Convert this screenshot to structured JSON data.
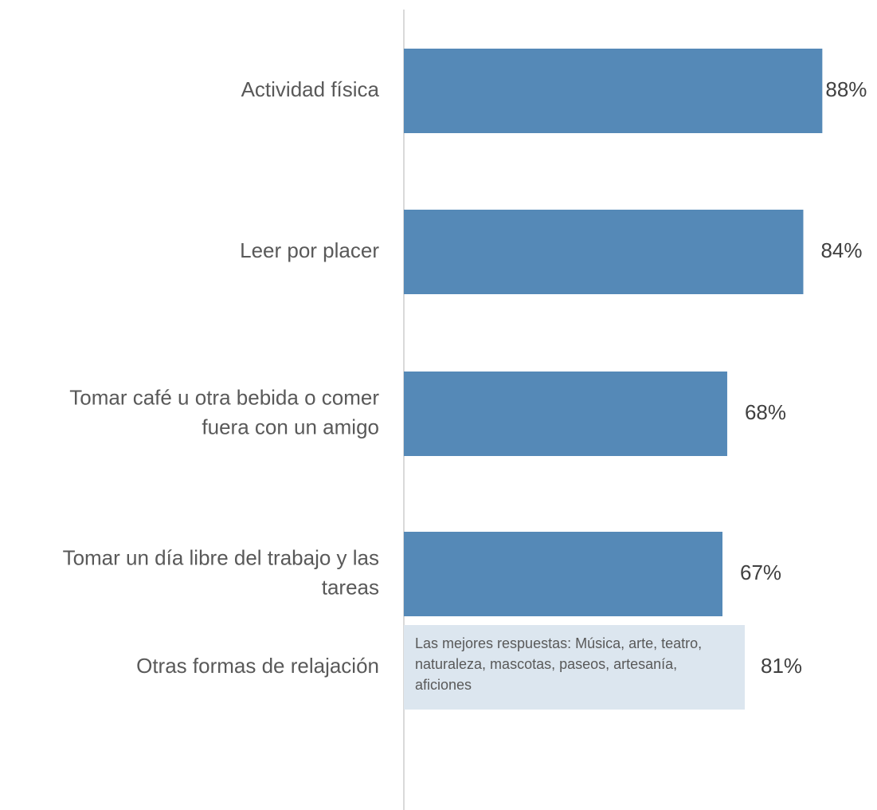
{
  "chart_data": {
    "type": "bar",
    "orientation": "horizontal",
    "categories": [
      "Actividad física",
      "Leer por placer",
      "Tomar café u otra bebida o comer fuera con un amigo",
      "Tomar un día libre del trabajo y las tareas",
      "Otras formas de relajación"
    ],
    "category_lines": [
      [
        "Actividad física"
      ],
      [
        "Leer por placer"
      ],
      [
        "Tomar café u otra bebida o comer",
        "fuera con un amigo"
      ],
      [
        "Tomar un día libre del trabajo y las",
        "tareas"
      ],
      [
        "Otras formas de relajación"
      ]
    ],
    "values": [
      88,
      84,
      68,
      67,
      81
    ],
    "value_labels": [
      "88%",
      "84%",
      "68%",
      "67%",
      "81%"
    ],
    "xlim": [
      0,
      100
    ],
    "grid": false,
    "colors": {
      "bar": "#5589b7",
      "note_box": "#dce6ef",
      "axis": "#d9d9d9",
      "label": "#595959"
    },
    "annotation": "Las mejores respuestas: Música, arte, teatro, naturaleza, mascotas, paseos, artesanía, aficiones"
  }
}
